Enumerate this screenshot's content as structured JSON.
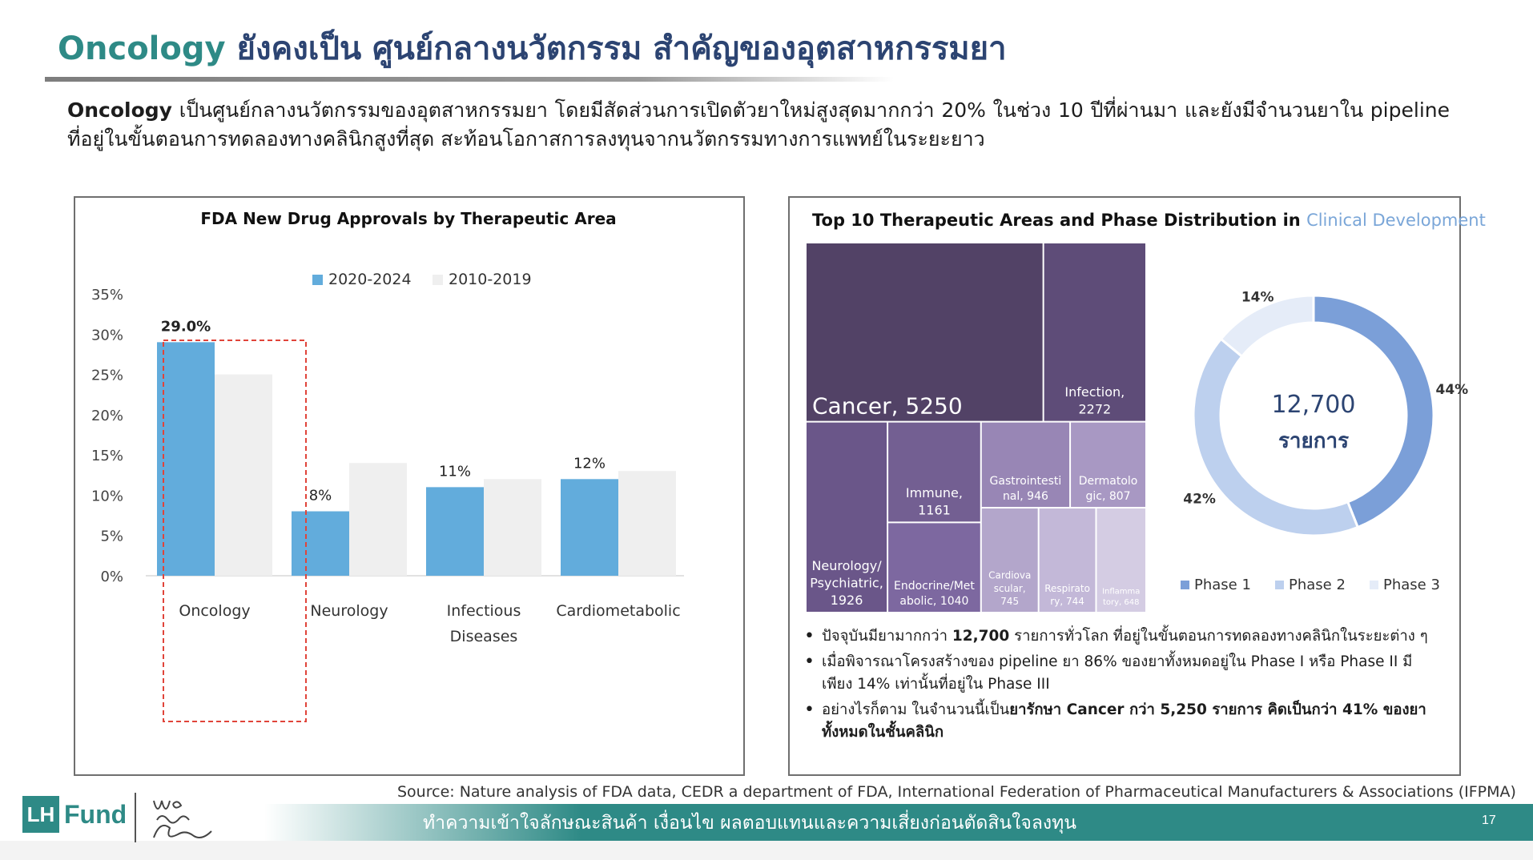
{
  "header": {
    "title_part1": "Oncology",
    "title_part2": "ยังคงเป็น ศูนย์กลางนวัตกรรม สำคัญของอุตสาหกรรมยา"
  },
  "intro": {
    "lead": "Oncology",
    "text": " เป็นศูนย์กลางนวัตกรรมของอุตสาหกรรมยา โดยมีสัดส่วนการเปิดตัวยาใหม่สูงสุดมากกว่า 20% ในช่วง 10 ปีที่ผ่านมา และยังมีจำนวนยาใน pipeline ที่อยู่ในขั้นตอนการทดลองทางคลินิกสูงที่สุด สะท้อนโอกาสการลงทุนจากนวัตกรรมทางการแพทย์ในระยะยาว"
  },
  "colors": {
    "brand_teal": "#2e8a86",
    "title_navy": "#2c4472",
    "bar_recent": "#62acdc",
    "bar_prior": "#efefef",
    "phase1": "#7b9fd8",
    "phase2": "#bdd0ee",
    "phase3": "#e5ecf8",
    "highlight_box": "#e0443a"
  },
  "chart_data": [
    {
      "type": "bar",
      "title": "FDA New Drug Approvals by Therapeutic Area",
      "categories": [
        "Oncology",
        "Neurology",
        "Infectious Diseases",
        "Cardiometabolic"
      ],
      "category_lines": [
        [
          "Oncology"
        ],
        [
          "Neurology"
        ],
        [
          "Infectious",
          "Diseases"
        ],
        [
          "Cardiometabolic"
        ]
      ],
      "series": [
        {
          "name": "2020-2024",
          "values": [
            29.0,
            8,
            11,
            12
          ],
          "labels": [
            "29.0%",
            "8%",
            "11%",
            "12%"
          ],
          "color": "#62acdc"
        },
        {
          "name": "2010-2019",
          "values": [
            25,
            14,
            12,
            13
          ],
          "labels": [
            "",
            "",
            "",
            ""
          ],
          "color": "#efefef"
        }
      ],
      "yticks": [
        "0%",
        "5%",
        "10%",
        "15%",
        "20%",
        "25%",
        "30%",
        "35%"
      ],
      "ylim": [
        0,
        35
      ],
      "legend": "top-center",
      "highlight_category": "Oncology"
    },
    {
      "type": "treemap",
      "title_main": "Top 10 Therapeutic Areas and Phase Distribution in",
      "title_highlight": "Clinical Development",
      "items": [
        {
          "label": "Cancer, 5250",
          "value": 5250,
          "color": "#524266"
        },
        {
          "label": "Infection, 2272",
          "value": 2272,
          "color": "#5e4c78"
        },
        {
          "label": "Neurology/ Psychiatric, 1926",
          "value": 1926,
          "color": "#6a5689"
        },
        {
          "label": "Immune, 1161",
          "value": 1161,
          "color": "#735f92"
        },
        {
          "label": "Endocrine/Metabolic, 1040",
          "value": 1040,
          "color": "#7d68a0"
        },
        {
          "label": "Gastrointestinal, 946",
          "value": 946,
          "color": "#9886b5"
        },
        {
          "label": "Dermatologic, 807",
          "value": 807,
          "color": "#a898c3"
        },
        {
          "label": "Cardiovascular, 745",
          "value": 745,
          "color": "#b3a6cb"
        },
        {
          "label": "Respiratory, 744",
          "value": 744,
          "color": "#c3b8d8"
        },
        {
          "label": "Inflammatory, 648",
          "value": 648,
          "color": "#d4cce3"
        }
      ]
    },
    {
      "type": "pie",
      "subtype": "donut",
      "center_value": "12,700",
      "center_label": "รายการ",
      "slices": [
        {
          "name": "Phase 1",
          "value": 44,
          "label": "44%",
          "color": "#7b9fd8"
        },
        {
          "name": "Phase 2",
          "value": 42,
          "label": "42%",
          "color": "#bdd0ee"
        },
        {
          "name": "Phase 3",
          "value": 14,
          "label": "14%",
          "color": "#e5ecf8"
        }
      ],
      "legend": "bottom"
    }
  ],
  "treemap_labels": [
    [
      "Cancer, 5250"
    ],
    [
      "Infection,",
      "2272"
    ],
    [
      "Neurology/",
      "Psychiatric,",
      "1926"
    ],
    [
      "Immune,",
      "1161"
    ],
    [
      "Endocrine/Met",
      "abolic, 1040"
    ],
    [
      "Gastrointesti",
      "nal, 946"
    ],
    [
      "Dermatolo",
      "gic, 807"
    ],
    [
      "Cardiova",
      "scular,",
      "745"
    ],
    [
      "Respirato",
      "ry, 744"
    ],
    [
      "Inflamma",
      "tory, 648"
    ]
  ],
  "bullets": [
    {
      "pre": "ปัจจุบันมียามากกว่า ",
      "bold": "12,700",
      "post": " รายการทั่วโลก ที่อยู่ในขั้นตอนการทดลองทางคลินิกในระยะต่าง ๆ"
    },
    {
      "pre": "เมื่อพิจารณาโครงสร้างของ pipeline ยา 86% ของยาทั้งหมดอยู่ใน Phase I หรือ Phase II มีเพียง 14% เท่านั้นที่อยู่ใน Phase III",
      "bold": "",
      "post": ""
    },
    {
      "pre": "อย่างไรก็ตาม ในจำนวนนี้เป็น",
      "bold": "ยารักษา Cancer กว่า 5,250 รายการ คิดเป็นกว่า 41% ของยาทั้งหมดในชั้นคลินิก",
      "post": ""
    }
  ],
  "footer": {
    "source": "Source: Nature analysis of FDA data, CEDR a department of FDA, International Federation of Pharmaceutical Manufacturers & Associations (IFPMA)",
    "note": "ทำความเข้าใจลักษณะสินค้า เงื่อนไข ผลตอบแทนและความเสี่ยงก่อนตัดสินใจลงทุน",
    "page": "17"
  },
  "logo": {
    "lh": "LH",
    "fund": "Fund",
    "tagline": "We care Family"
  }
}
